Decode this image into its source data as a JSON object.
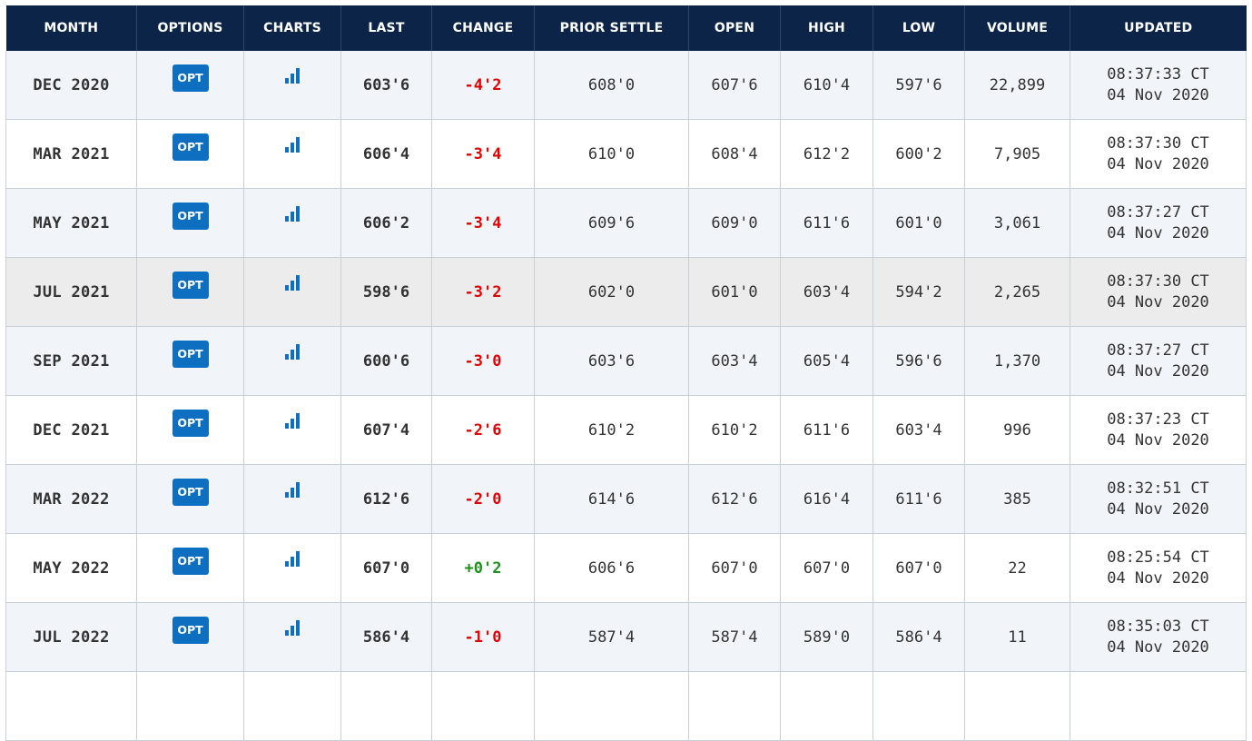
{
  "columns": [
    "MONTH",
    "OPTIONS",
    "CHARTS",
    "LAST",
    "CHANGE",
    "PRIOR SETTLE",
    "OPEN",
    "HIGH",
    "LOW",
    "VOLUME",
    "UPDATED"
  ],
  "colors": {
    "header_bg": "#0b2447",
    "opt_button": "#0e6fc1",
    "negative": "#e00000",
    "positive": "#1f8f1f"
  },
  "icons": {
    "charts": "bar-chart-icon"
  },
  "rows": [
    {
      "month": "DEC 2020",
      "opt": "OPT",
      "last": "603'6",
      "change": "-4'2",
      "dir": "neg",
      "prior": "608'0",
      "open": "607'6",
      "high": "610'4",
      "low": "597'6",
      "volume": "22,899",
      "time": "08:37:33 CT",
      "date": "04 Nov 2020"
    },
    {
      "month": "MAR 2021",
      "opt": "OPT",
      "last": "606'4",
      "change": "-3'4",
      "dir": "neg",
      "prior": "610'0",
      "open": "608'4",
      "high": "612'2",
      "low": "600'2",
      "volume": "7,905",
      "time": "08:37:30 CT",
      "date": "04 Nov 2020"
    },
    {
      "month": "MAY 2021",
      "opt": "OPT",
      "last": "606'2",
      "change": "-3'4",
      "dir": "neg",
      "prior": "609'6",
      "open": "609'0",
      "high": "611'6",
      "low": "601'0",
      "volume": "3,061",
      "time": "08:37:27 CT",
      "date": "04 Nov 2020"
    },
    {
      "month": "JUL 2021",
      "opt": "OPT",
      "last": "598'6",
      "change": "-3'2",
      "dir": "neg",
      "prior": "602'0",
      "open": "601'0",
      "high": "603'4",
      "low": "594'2",
      "volume": "2,265",
      "time": "08:37:30 CT",
      "date": "04 Nov 2020"
    },
    {
      "month": "SEP 2021",
      "opt": "OPT",
      "last": "600'6",
      "change": "-3'0",
      "dir": "neg",
      "prior": "603'6",
      "open": "603'4",
      "high": "605'4",
      "low": "596'6",
      "volume": "1,370",
      "time": "08:37:27 CT",
      "date": "04 Nov 2020"
    },
    {
      "month": "DEC 2021",
      "opt": "OPT",
      "last": "607'4",
      "change": "-2'6",
      "dir": "neg",
      "prior": "610'2",
      "open": "610'2",
      "high": "611'6",
      "low": "603'4",
      "volume": "996",
      "time": "08:37:23 CT",
      "date": "04 Nov 2020"
    },
    {
      "month": "MAR 2022",
      "opt": "OPT",
      "last": "612'6",
      "change": "-2'0",
      "dir": "neg",
      "prior": "614'6",
      "open": "612'6",
      "high": "616'4",
      "low": "611'6",
      "volume": "385",
      "time": "08:32:51 CT",
      "date": "04 Nov 2020"
    },
    {
      "month": "MAY 2022",
      "opt": "OPT",
      "last": "607'0",
      "change": "+0'2",
      "dir": "pos",
      "prior": "606'6",
      "open": "607'0",
      "high": "607'0",
      "low": "607'0",
      "volume": "22",
      "time": "08:25:54 CT",
      "date": "04 Nov 2020"
    },
    {
      "month": "JUL 2022",
      "opt": "OPT",
      "last": "586'4",
      "change": "-1'0",
      "dir": "neg",
      "prior": "587'4",
      "open": "587'4",
      "high": "589'0",
      "low": "586'4",
      "volume": "11",
      "time": "08:35:03 CT",
      "date": "04 Nov 2020"
    },
    {
      "month": "",
      "opt": "",
      "last": "",
      "change": "",
      "dir": "",
      "prior": "",
      "open": "",
      "high": "",
      "low": "",
      "volume": "",
      "time": "",
      "date": ""
    }
  ]
}
